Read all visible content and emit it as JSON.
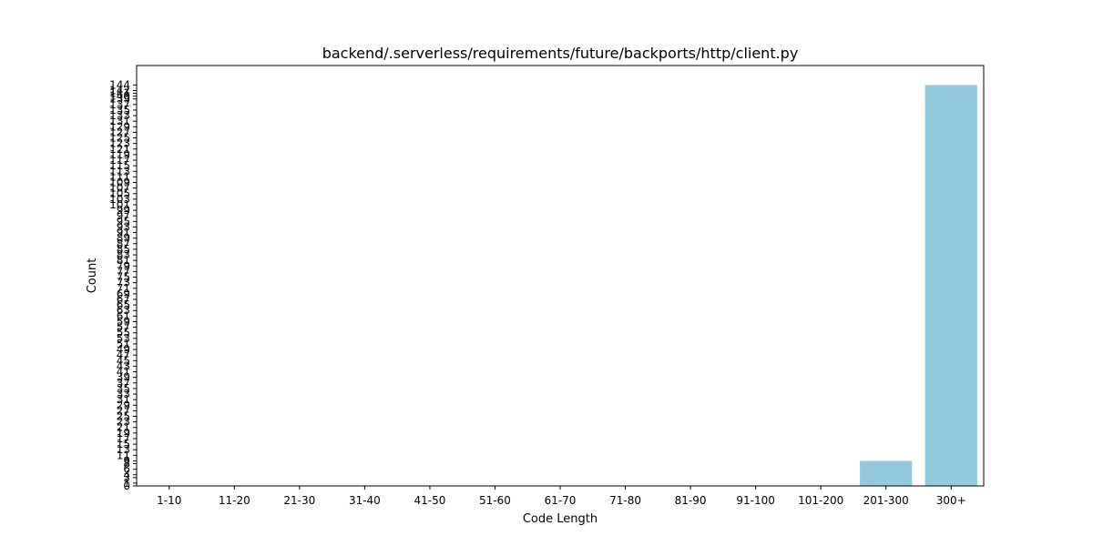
{
  "chart_data": {
    "type": "bar",
    "title": "backend/.serverless/requirements/future/backports/http/client.py",
    "xlabel": "Code Length",
    "ylabel": "Count",
    "categories": [
      "1-10",
      "11-20",
      "21-30",
      "31-40",
      "41-50",
      "51-60",
      "61-70",
      "71-80",
      "81-90",
      "91-100",
      "101-200",
      "201-300",
      "300+"
    ],
    "values": [
      0,
      0,
      0,
      0,
      0,
      0,
      0,
      0,
      0,
      0,
      0,
      9,
      144
    ],
    "ylim": [
      0,
      151
    ],
    "grid": false,
    "bar_color": "#92c9de",
    "y_ticks": [
      0,
      1,
      3,
      4,
      6,
      8,
      9,
      11,
      13,
      15,
      17,
      19,
      21,
      23,
      25,
      27,
      29,
      31,
      33,
      35,
      37,
      39,
      41,
      43,
      45,
      47,
      49,
      51,
      53,
      55,
      57,
      59,
      61,
      63,
      65,
      67,
      69,
      71,
      73,
      75,
      77,
      79,
      81,
      83,
      85,
      87,
      89,
      91,
      93,
      95,
      97,
      99,
      101,
      103,
      105,
      107,
      109,
      111,
      113,
      115,
      117,
      119,
      121,
      123,
      125,
      127,
      129,
      131,
      133,
      135,
      137,
      139,
      140,
      141,
      142,
      144
    ]
  }
}
